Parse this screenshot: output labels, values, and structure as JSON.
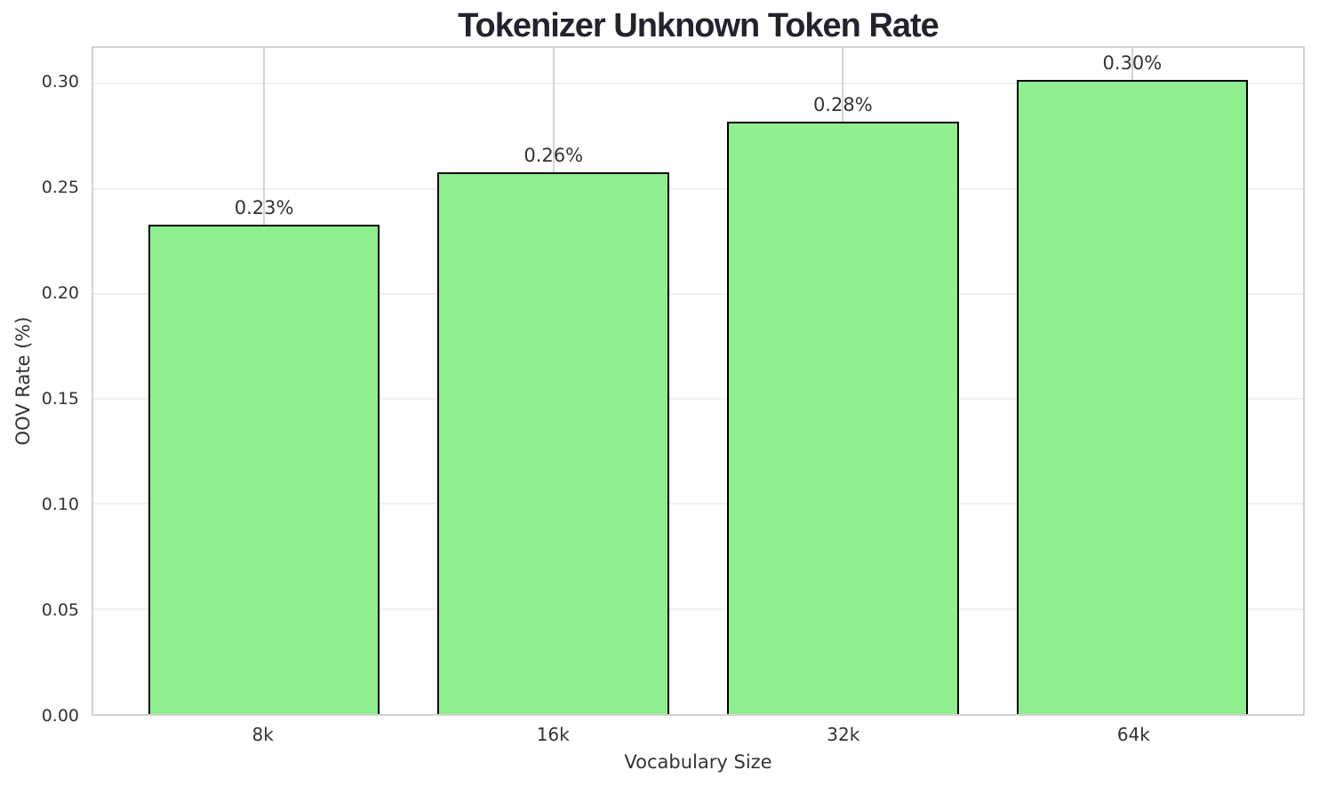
{
  "chart_data": {
    "type": "bar",
    "title": "Tokenizer Unknown Token Rate",
    "xlabel": "Vocabulary Size",
    "ylabel": "OOV Rate (%)",
    "categories": [
      "8k",
      "16k",
      "32k",
      "64k"
    ],
    "values": [
      0.233,
      0.258,
      0.282,
      0.302
    ],
    "bar_labels": [
      "0.23%",
      "0.26%",
      "0.28%",
      "0.30%"
    ],
    "ylim": [
      0,
      0.317
    ],
    "yticks": [
      0.0,
      0.05,
      0.1,
      0.15,
      0.2,
      0.25,
      0.3
    ],
    "ytick_labels": [
      "0.00",
      "0.05",
      "0.10",
      "0.15",
      "0.20",
      "0.25",
      "0.30"
    ],
    "xlim_units": [
      -0.59,
      3.59
    ],
    "bar_width_units": 0.8,
    "grid": "horizontal-faint-and-vertical-at-bar-centers",
    "legend": "none",
    "bar_color": "#90EE90",
    "bar_edge_color": "#000000",
    "spine_color": "#d2d2d2",
    "h_grid_color": "#f0f0f0",
    "v_grid_color": "#d4d4d4",
    "title_color": "#23232d",
    "tick_color": "#333333"
  }
}
